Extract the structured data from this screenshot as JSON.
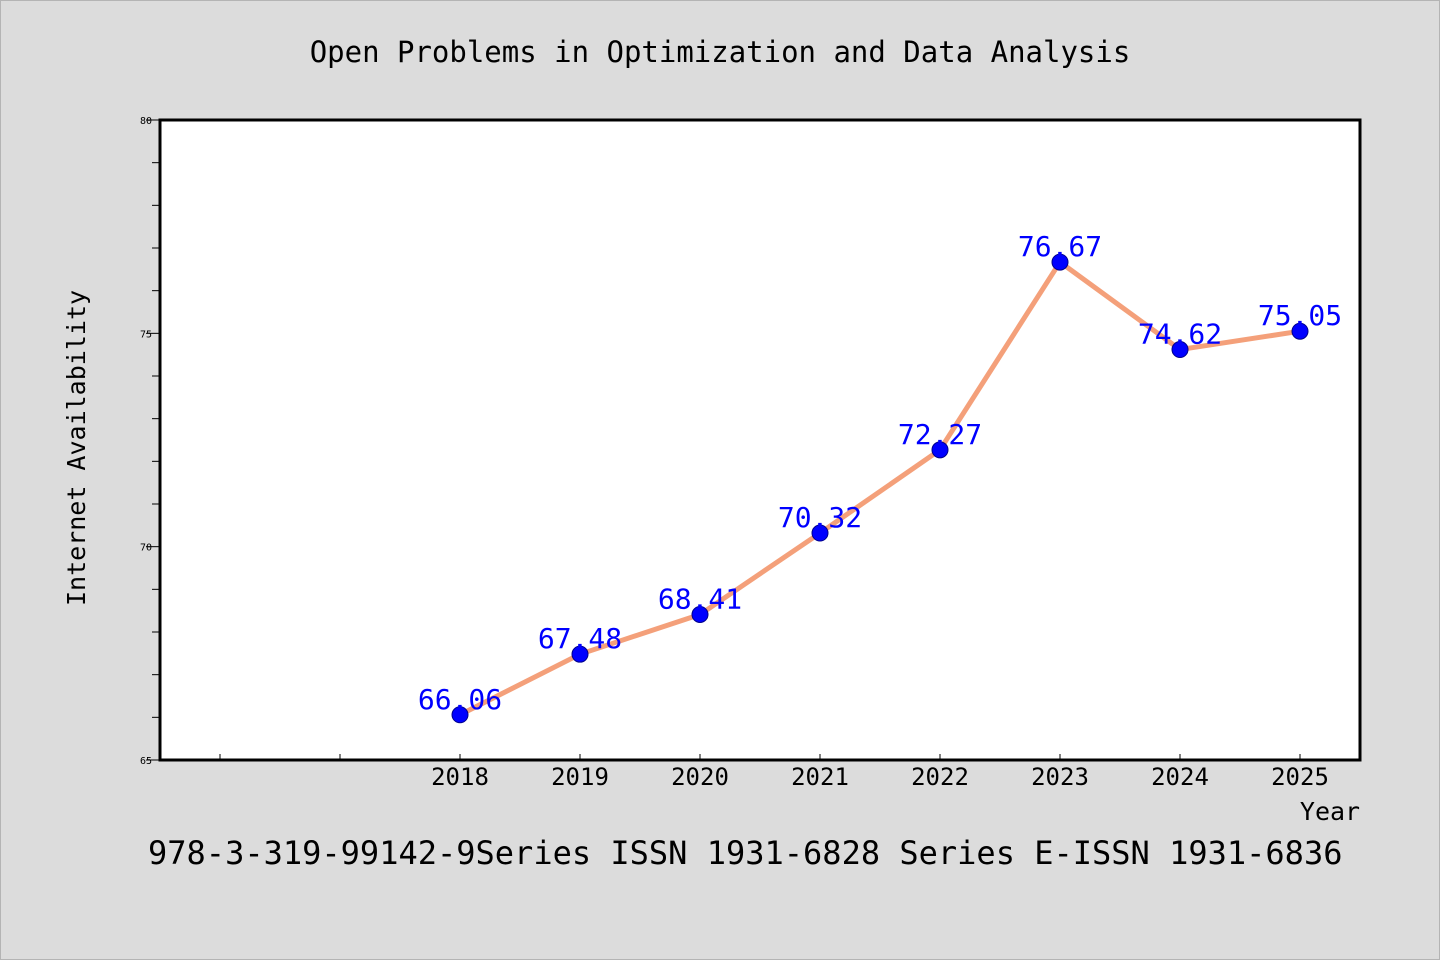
{
  "chart_data": {
    "type": "line",
    "title": "Open Problems in Optimization and Data Analysis",
    "xlabel": "Year",
    "ylabel": "Internet Availability",
    "categories": [
      "2018",
      "2019",
      "2020",
      "2021",
      "2022",
      "2023",
      "2024",
      "2025"
    ],
    "series": [
      {
        "values": [
          66.06,
          67.48,
          68.41,
          70.32,
          72.27,
          76.67,
          74.62,
          75.05
        ],
        "data_labels": [
          "66.06",
          "67.48",
          "68.41",
          "70.32",
          "72.27",
          "76.67",
          "74.62",
          "75.05"
        ]
      }
    ],
    "ylim": [
      65,
      80
    ],
    "yticks": [
      "65",
      "70",
      "75",
      "80"
    ],
    "grid": false,
    "line_color": "#f4a07a",
    "marker_color": "#0000ff",
    "label_color": "#0000ff"
  },
  "footer": "978-3-319-99142-9Series ISSN 1931-6828 Series E-ISSN 1931-6836"
}
